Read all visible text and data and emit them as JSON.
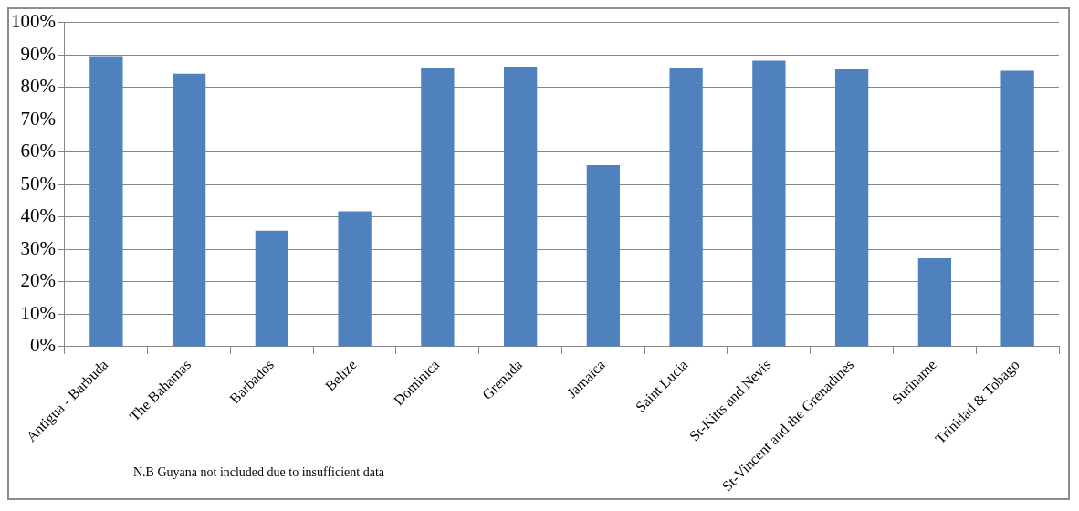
{
  "chart_data": {
    "type": "bar",
    "categories": [
      "Antigua - Barbuda",
      "The Bahamas",
      "Barbados",
      "Belize",
      "Dominica",
      "Grenada",
      "Jamaica",
      "Saint Lucia",
      "St-Kitts and Nevis",
      "St-Vincent and the Grenadines",
      "Suriname",
      "Trinidad & Tobago"
    ],
    "values": [
      89.6,
      84.2,
      35.8,
      41.8,
      86,
      86.4,
      56,
      86.1,
      88.2,
      85.5,
      27.3,
      85.1
    ],
    "color": "#4f81bd",
    "ylim": [
      0,
      100
    ],
    "yticks": [
      {
        "value": 0,
        "label": "0%"
      },
      {
        "value": 10,
        "label": "10%"
      },
      {
        "value": 20,
        "label": "20%"
      },
      {
        "value": 30,
        "label": "30%"
      },
      {
        "value": 40,
        "label": "40%"
      },
      {
        "value": 50,
        "label": "50%"
      },
      {
        "value": 60,
        "label": "60%"
      },
      {
        "value": 70,
        "label": "70%"
      },
      {
        "value": 80,
        "label": "80%"
      },
      {
        "value": 90,
        "label": "90%"
      },
      {
        "value": 100,
        "label": "100%"
      }
    ],
    "grid": "y",
    "legend": false,
    "annotations": [
      "N.B Guyana not included due to insufficient data"
    ]
  }
}
